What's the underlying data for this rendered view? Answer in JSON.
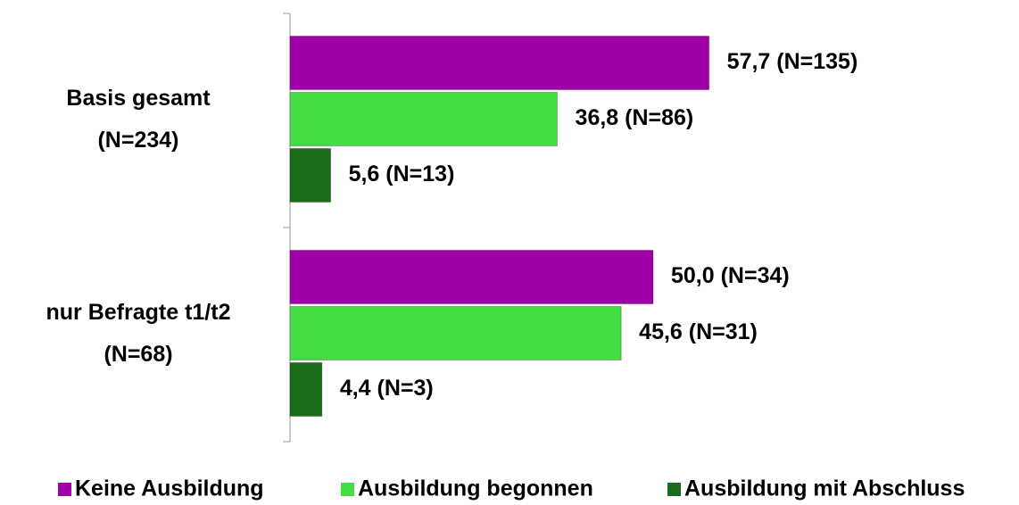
{
  "chart_data": {
    "type": "hbar",
    "categories": [
      [
        "Basis gesamt",
        "(N=234)"
      ],
      [
        "nur Befragte t1/t2",
        "(N=68)"
      ]
    ],
    "series": [
      {
        "name": "Keine Ausbildung",
        "color": "#a000a8",
        "values": [
          57.7,
          50.0
        ],
        "value_labels": [
          "57,7 (N=135)",
          "50,0 (N=34)"
        ]
      },
      {
        "name": "Ausbildung begonnen",
        "color": "#44dd44",
        "values": [
          36.8,
          45.6
        ],
        "value_labels": [
          "36,8 (N=86)",
          "45,6 (N=31)"
        ]
      },
      {
        "name": "Ausbildung mit Abschluss",
        "color": "#1a6b1a",
        "values": [
          5.6,
          4.4
        ],
        "value_labels": [
          "5,6 (N=13)",
          "4,4  (N=3)"
        ]
      }
    ],
    "xlim": [
      0,
      100
    ],
    "legend": "bottom"
  }
}
